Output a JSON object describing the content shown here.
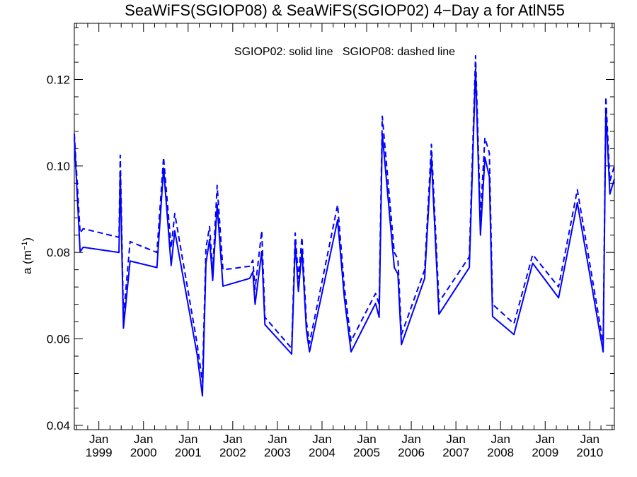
{
  "chart_data": {
    "type": "line",
    "title": "SeaWiFS(SGIOP08) & SeaWiFS(SGIOP02) 4−Day a for AtlN55",
    "ylabel": "a (m⁻¹)",
    "legend_note": "SGIOP02: solid line   SGIOP08: dashed line",
    "ylim": [
      0.039,
      0.133
    ],
    "yticks": [
      0.04,
      0.06,
      0.08,
      0.1,
      0.12
    ],
    "ytick_labels": [
      "0.04",
      "0.06",
      "0.08",
      "0.10",
      "0.12"
    ],
    "xlim": [
      1998.45,
      2010.55
    ],
    "xticks": [
      {
        "value": 1999,
        "month": "Jan",
        "year": "1999"
      },
      {
        "value": 2000,
        "month": "Jan",
        "year": "2000"
      },
      {
        "value": 2001,
        "month": "Jan",
        "year": "2001"
      },
      {
        "value": 2002,
        "month": "Jan",
        "year": "2002"
      },
      {
        "value": 2003,
        "month": "Jan",
        "year": "2003"
      },
      {
        "value": 2004,
        "month": "Jan",
        "year": "2004"
      },
      {
        "value": 2005,
        "month": "Jan",
        "year": "2005"
      },
      {
        "value": 2006,
        "month": "Jan",
        "year": "2006"
      },
      {
        "value": 2007,
        "month": "Jan",
        "year": "2007"
      },
      {
        "value": 2008,
        "month": "Jan",
        "year": "2008"
      },
      {
        "value": 2009,
        "month": "Jan",
        "year": "2009"
      },
      {
        "value": 2010,
        "month": "Jan",
        "year": "2010"
      }
    ],
    "grid": false,
    "line_color": "#0000ff",
    "series": [
      {
        "name": "SGIOP02",
        "style": "solid",
        "points": [
          [
            1998.45,
            0.1065
          ],
          [
            1998.58,
            0.0802
          ],
          [
            1998.65,
            0.0812
          ],
          [
            1999.45,
            0.08
          ],
          [
            1999.48,
            0.0985
          ],
          [
            1999.55,
            0.0625
          ],
          [
            1999.7,
            0.078
          ],
          [
            2000.3,
            0.0765
          ],
          [
            2000.45,
            0.0995
          ],
          [
            2000.62,
            0.077
          ],
          [
            2000.7,
            0.085
          ],
          [
            2001.2,
            0.0565
          ],
          [
            2001.32,
            0.0468
          ],
          [
            2001.4,
            0.0775
          ],
          [
            2001.48,
            0.083
          ],
          [
            2001.55,
            0.0735
          ],
          [
            2001.65,
            0.091
          ],
          [
            2001.78,
            0.0722
          ],
          [
            2002.38,
            0.074
          ],
          [
            2002.45,
            0.0755
          ],
          [
            2002.5,
            0.068
          ],
          [
            2002.65,
            0.0802
          ],
          [
            2002.72,
            0.0633
          ],
          [
            2003.32,
            0.0565
          ],
          [
            2003.4,
            0.082
          ],
          [
            2003.47,
            0.071
          ],
          [
            2003.55,
            0.0805
          ],
          [
            2003.65,
            0.062
          ],
          [
            2003.72,
            0.057
          ],
          [
            2004.35,
            0.0875
          ],
          [
            2004.5,
            0.0695
          ],
          [
            2004.65,
            0.057
          ],
          [
            2005.2,
            0.0682
          ],
          [
            2005.28,
            0.065
          ],
          [
            2005.35,
            0.1075
          ],
          [
            2005.62,
            0.0765
          ],
          [
            2005.7,
            0.075
          ],
          [
            2005.78,
            0.0587
          ],
          [
            2006.3,
            0.074
          ],
          [
            2006.45,
            0.102
          ],
          [
            2006.62,
            0.0657
          ],
          [
            2007.3,
            0.0765
          ],
          [
            2007.44,
            0.1225
          ],
          [
            2007.55,
            0.084
          ],
          [
            2007.65,
            0.102
          ],
          [
            2007.75,
            0.0975
          ],
          [
            2007.82,
            0.0652
          ],
          [
            2008.3,
            0.061
          ],
          [
            2008.72,
            0.0775
          ],
          [
            2009.3,
            0.0695
          ],
          [
            2009.72,
            0.0915
          ],
          [
            2010.3,
            0.057
          ],
          [
            2010.36,
            0.113
          ],
          [
            2010.45,
            0.0935
          ],
          [
            2010.55,
            0.097
          ]
        ]
      },
      {
        "name": "SGIOP08",
        "style": "dashed",
        "points": [
          [
            1998.45,
            0.1075
          ],
          [
            1998.58,
            0.0845
          ],
          [
            1998.65,
            0.0855
          ],
          [
            1999.45,
            0.0835
          ],
          [
            1999.48,
            0.1025
          ],
          [
            1999.55,
            0.065
          ],
          [
            1999.7,
            0.0825
          ],
          [
            2000.3,
            0.08
          ],
          [
            2000.45,
            0.102
          ],
          [
            2000.62,
            0.081
          ],
          [
            2000.7,
            0.089
          ],
          [
            2001.2,
            0.059
          ],
          [
            2001.32,
            0.05
          ],
          [
            2001.4,
            0.081
          ],
          [
            2001.48,
            0.086
          ],
          [
            2001.55,
            0.0755
          ],
          [
            2001.65,
            0.0955
          ],
          [
            2001.78,
            0.076
          ],
          [
            2002.38,
            0.0768
          ],
          [
            2002.45,
            0.0782
          ],
          [
            2002.5,
            0.0715
          ],
          [
            2002.65,
            0.085
          ],
          [
            2002.72,
            0.065
          ],
          [
            2003.32,
            0.0578
          ],
          [
            2003.4,
            0.0845
          ],
          [
            2003.47,
            0.074
          ],
          [
            2003.55,
            0.0835
          ],
          [
            2003.65,
            0.064
          ],
          [
            2003.72,
            0.059
          ],
          [
            2004.35,
            0.091
          ],
          [
            2004.5,
            0.072
          ],
          [
            2004.65,
            0.0595
          ],
          [
            2005.2,
            0.0705
          ],
          [
            2005.28,
            0.068
          ],
          [
            2005.35,
            0.1115
          ],
          [
            2005.62,
            0.08
          ],
          [
            2005.7,
            0.0785
          ],
          [
            2005.78,
            0.061
          ],
          [
            2006.3,
            0.076
          ],
          [
            2006.45,
            0.105
          ],
          [
            2006.62,
            0.0685
          ],
          [
            2007.3,
            0.079
          ],
          [
            2007.44,
            0.1255
          ],
          [
            2007.55,
            0.088
          ],
          [
            2007.65,
            0.1065
          ],
          [
            2007.75,
            0.103
          ],
          [
            2007.82,
            0.068
          ],
          [
            2008.3,
            0.0635
          ],
          [
            2008.72,
            0.0795
          ],
          [
            2009.3,
            0.072
          ],
          [
            2009.72,
            0.0945
          ],
          [
            2010.3,
            0.059
          ],
          [
            2010.36,
            0.116
          ],
          [
            2010.45,
            0.0965
          ],
          [
            2010.55,
            0.1
          ]
        ]
      }
    ]
  }
}
